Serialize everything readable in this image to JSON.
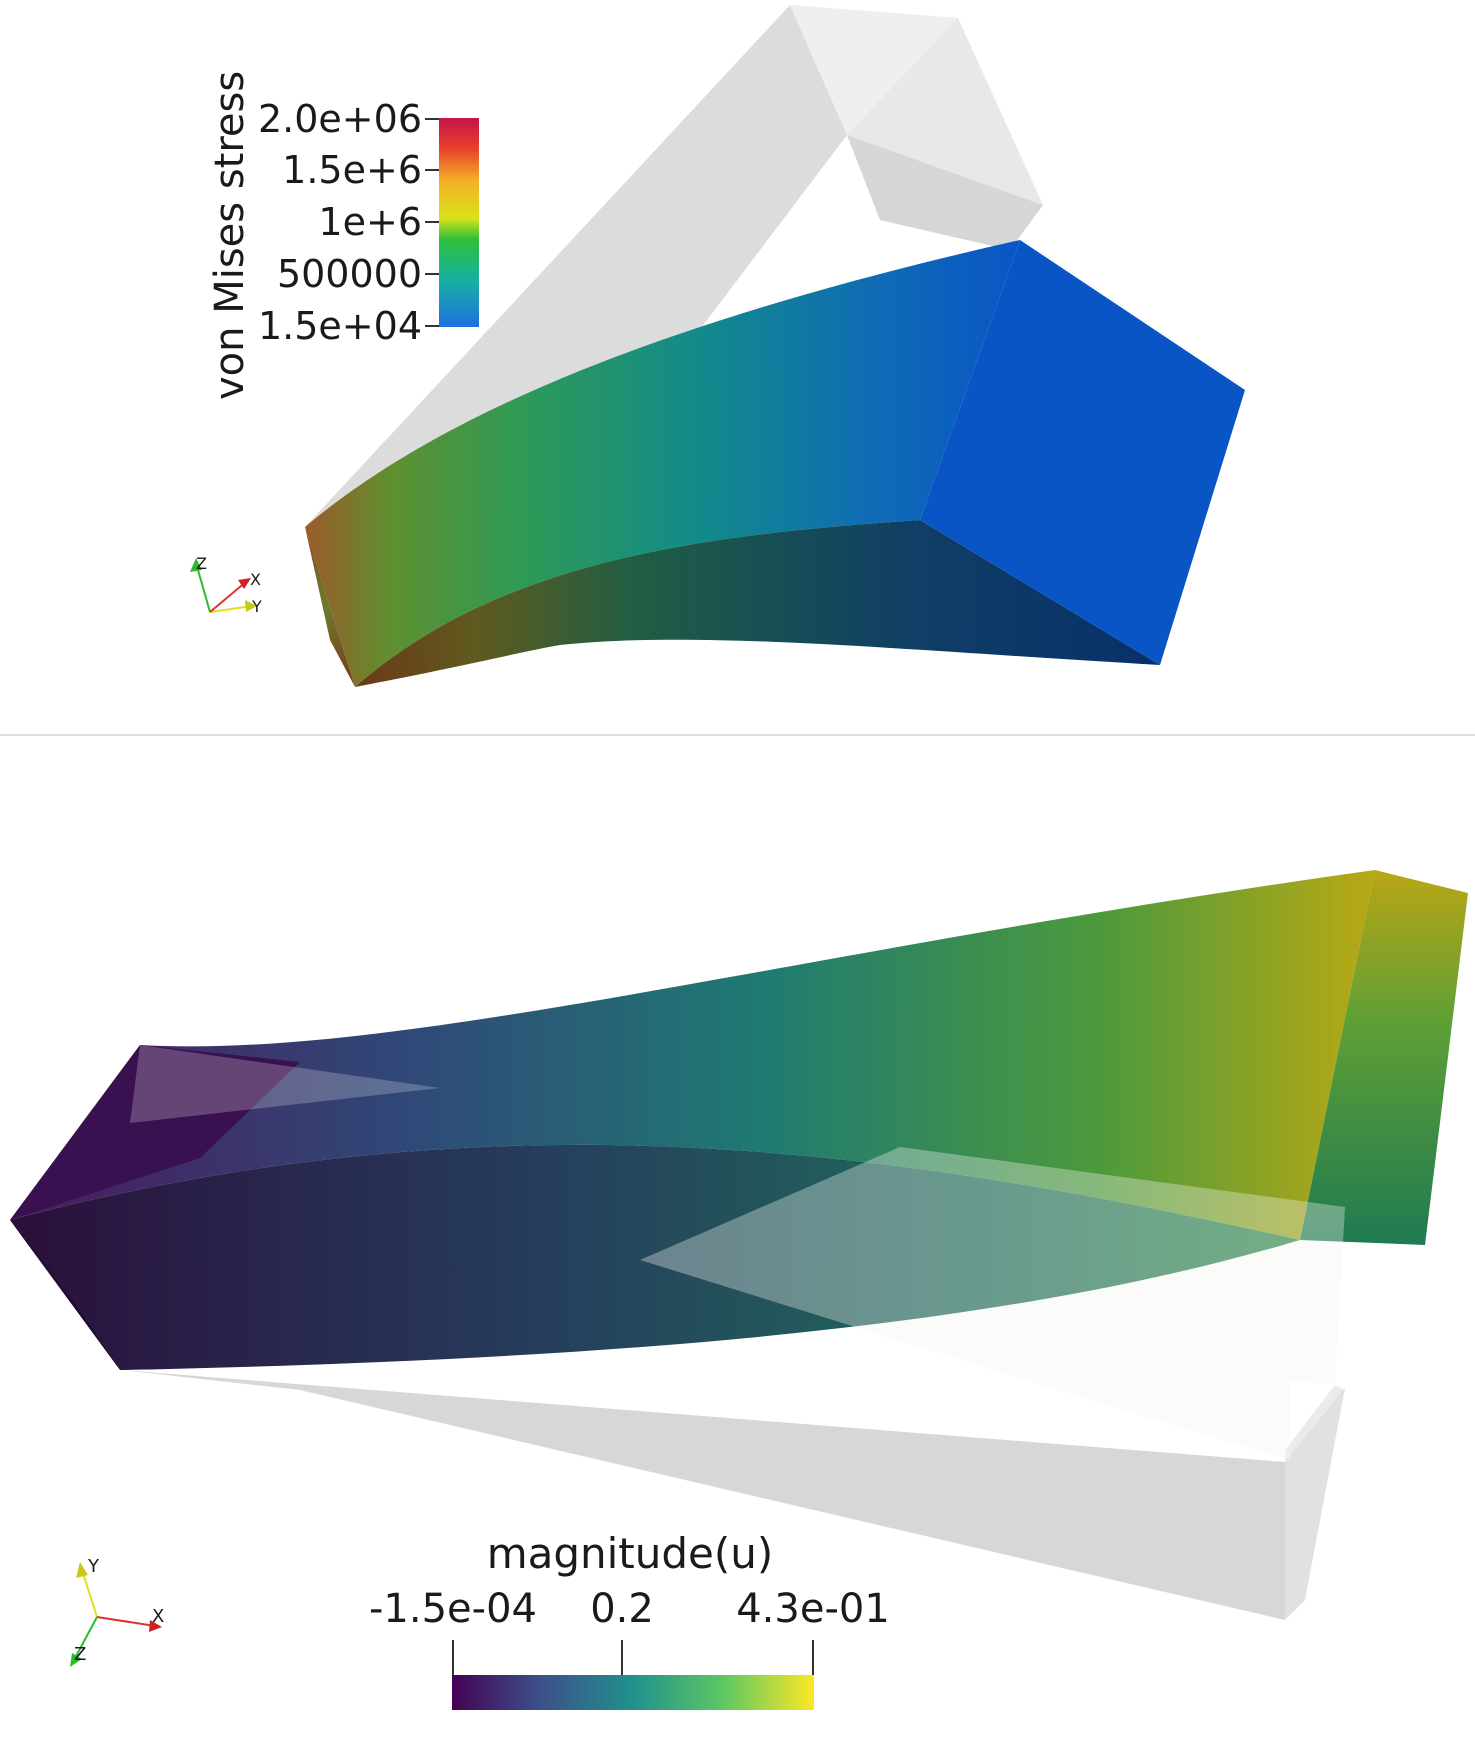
{
  "top_panel": {
    "colorbar": {
      "title": "von Mises stress",
      "ticks": [
        "2.0e+06",
        "1.5e+6",
        "1e+6",
        "500000",
        "1.5e+04"
      ],
      "colormap": [
        "#c5134c",
        "#e8422c",
        "#f5b026",
        "#d9e21a",
        "#2ec03a",
        "#16b0a4",
        "#1f6fe0"
      ]
    },
    "axes": {
      "x": "X",
      "y": "Y",
      "z": "Z"
    }
  },
  "bottom_panel": {
    "colorbar": {
      "title": "magnitude(u)",
      "ticks": [
        "-1.5e-04",
        "0.2",
        "4.3e-01"
      ],
      "colormap": [
        "#440154",
        "#3b528b",
        "#21908d",
        "#5dc863",
        "#fde725"
      ]
    },
    "axes": {
      "x": "X",
      "y": "Y",
      "z": "Z"
    }
  }
}
